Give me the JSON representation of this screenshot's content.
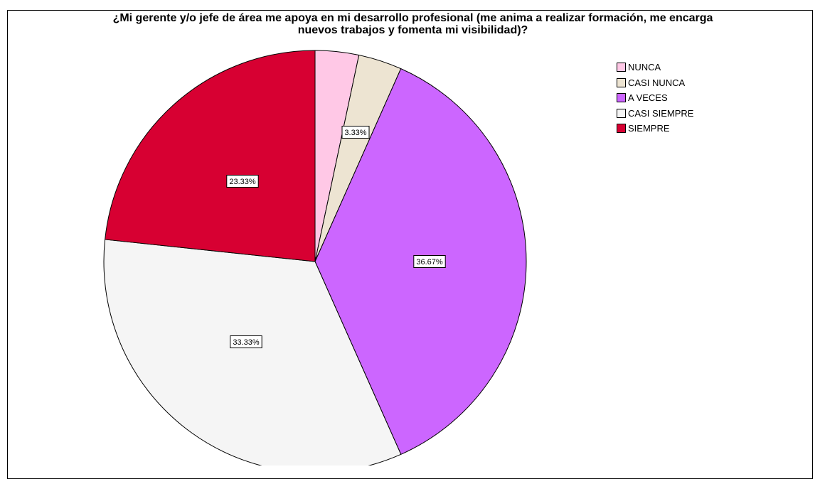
{
  "chart_data": {
    "type": "pie",
    "title_lines": [
      "¿Mi gerente y/o jefe de área me apoya en mi desarrollo profesional (me anima a realizar formación, me encarga",
      "nuevos trabajos y fomenta mi visibilidad)?"
    ],
    "slices": [
      {
        "label": "NUNCA",
        "value": 3.33,
        "color": "#FFC8E6",
        "data_label": ""
      },
      {
        "label": "CASI NUNCA",
        "value": 3.33,
        "color": "#EDE4D2",
        "data_label": "3.33%"
      },
      {
        "label": "A VECES",
        "value": 36.67,
        "color": "#CC66FF",
        "data_label": "36.67%"
      },
      {
        "label": "CASI SIEMPRE",
        "value": 33.33,
        "color": "#F5F5F5",
        "data_label": "33.33%"
      },
      {
        "label": "SIEMPRE",
        "value": 23.33,
        "color": "#D70032",
        "data_label": "23.33%"
      }
    ],
    "start_angle": "12 o'clock",
    "direction": "clockwise",
    "legend_position": "top-right"
  }
}
